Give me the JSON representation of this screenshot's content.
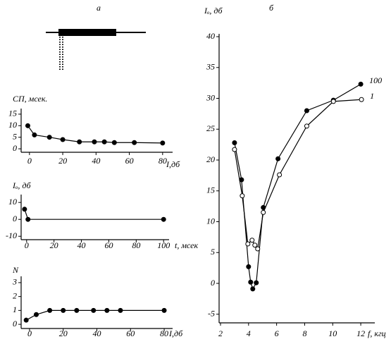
{
  "chart_data": [
    {
      "type": "line",
      "panel": "а",
      "y_label": "СП, мсек.",
      "x_label": "I,дб",
      "x": [
        -1,
        3,
        12,
        20,
        30,
        39,
        45,
        51,
        63,
        80
      ],
      "values": [
        10,
        6,
        5,
        4,
        3,
        3,
        3,
        2.7,
        2.7,
        2.5
      ],
      "color": "#000000",
      "marker": "filled",
      "xlim": [
        -5,
        86
      ],
      "ylim": [
        -1.5,
        16.2
      ],
      "xticks": [
        0,
        20,
        40,
        60,
        80
      ],
      "yticks": [
        0,
        5,
        10,
        15
      ]
    },
    {
      "type": "line",
      "y_label": "Iₒ, дб",
      "x_label": "t, мсек",
      "x": [
        -1.5,
        1,
        100
      ],
      "values": [
        6,
        0,
        0
      ],
      "color": "#000000",
      "marker": "filled",
      "xlim": [
        -4,
        104
      ],
      "ylim": [
        -12,
        13
      ],
      "xticks": [
        0,
        20,
        40,
        60,
        80,
        100
      ],
      "yticks": [
        -10,
        0,
        10
      ]
    },
    {
      "type": "line",
      "y_label": "N",
      "x_label": "I,дб",
      "x": [
        -2,
        4,
        12,
        20,
        28,
        38,
        46,
        54,
        80
      ],
      "values": [
        0.3,
        0.7,
        1,
        1,
        1,
        1,
        1,
        1,
        1
      ],
      "color": "#000000",
      "marker": "filled",
      "xlim": [
        -5,
        85
      ],
      "ylim": [
        -0.3,
        3.25
      ],
      "xticks": [
        0,
        20,
        40,
        60,
        80
      ],
      "yticks": [
        0,
        1,
        2,
        3
      ]
    },
    {
      "type": "line",
      "panel": "б",
      "y_label": "Iₒ, дб",
      "x_label": "f, кгц",
      "series": [
        {
          "name": "100",
          "color": "#000000",
          "marker": "filled",
          "x": [
            3.0,
            3.5,
            4.0,
            4.15,
            4.3,
            4.55,
            5.05,
            6.1,
            8.15,
            10.05,
            12.0
          ],
          "values": [
            22.8,
            16.8,
            2.7,
            0.2,
            -0.9,
            0.1,
            12.3,
            20.2,
            28.0,
            29.7,
            32.3
          ]
        },
        {
          "name": "1",
          "color": "#000000",
          "marker": "open",
          "x": [
            3.0,
            3.55,
            3.95,
            4.25,
            4.45,
            4.65,
            5.05,
            6.2,
            8.15,
            10.05,
            12.05
          ],
          "values": [
            21.7,
            14.2,
            6.4,
            7.0,
            6.2,
            5.6,
            11.5,
            17.6,
            25.5,
            29.5,
            29.8
          ]
        }
      ],
      "xlim": [
        1.9,
        13
      ],
      "ylim": [
        -6.4,
        40
      ],
      "xticks": [
        2,
        4,
        6,
        8,
        10,
        12
      ],
      "yticks": [
        -5,
        0,
        5,
        10,
        15,
        20,
        25,
        30,
        35,
        40
      ]
    }
  ]
}
